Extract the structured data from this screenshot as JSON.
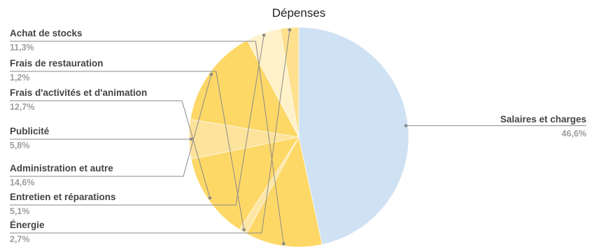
{
  "chart_data": {
    "type": "pie",
    "title": "Dépenses",
    "start_angle_deg": 0,
    "direction": "clockwise",
    "slices": [
      {
        "label": "Salaires et charges",
        "value": 46.6,
        "value_label": "46,6%",
        "color": "#cfe2f3",
        "side": "right"
      },
      {
        "label": "Achat de stocks",
        "value": 11.3,
        "value_label": "11,3%",
        "color": "#fdd867",
        "side": "left"
      },
      {
        "label": "Frais de restauration",
        "value": 1.2,
        "value_label": "1,2%",
        "color": "#fde6a6",
        "side": "left"
      },
      {
        "label": "Frais d'activités et d'animation",
        "value": 12.7,
        "value_label": "12,7%",
        "color": "#fdd867",
        "side": "left"
      },
      {
        "label": "Publicité",
        "value": 5.8,
        "value_label": "5,8%",
        "color": "#fde39b",
        "side": "left"
      },
      {
        "label": "Administration et autre",
        "value": 14.6,
        "value_label": "14,6%",
        "color": "#fdd867",
        "side": "left"
      },
      {
        "label": "Entretien et réparations",
        "value": 5.1,
        "value_label": "5,1%",
        "color": "#fff1c9",
        "side": "left"
      },
      {
        "label": "Énergie",
        "value": 2.7,
        "value_label": "2,7%",
        "color": "#fee08f",
        "side": "left"
      }
    ],
    "legend": "none"
  }
}
